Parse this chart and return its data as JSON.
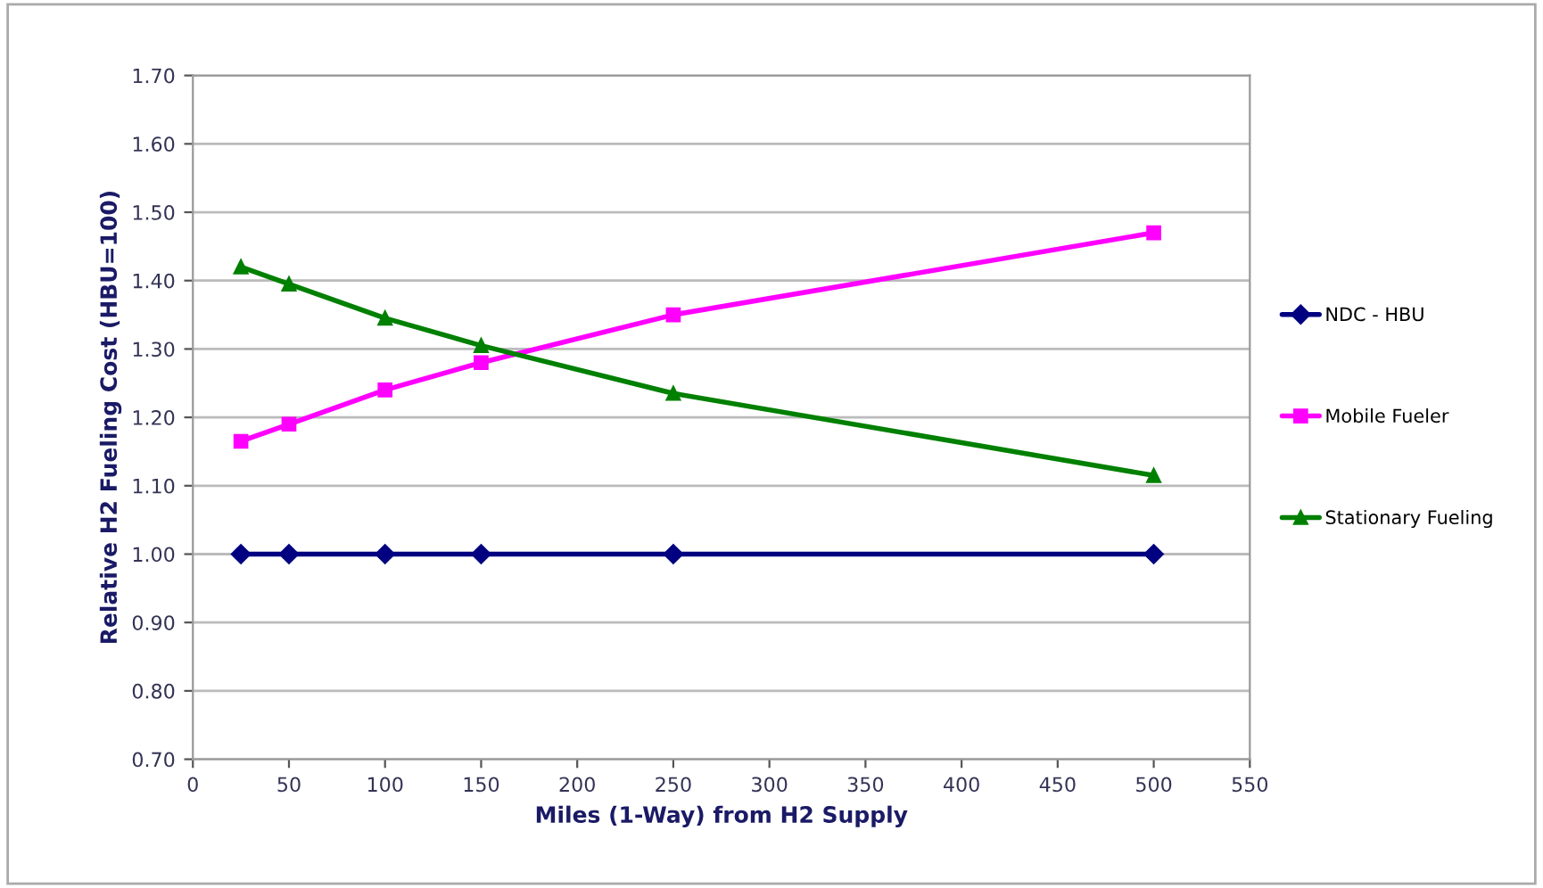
{
  "chart_data": {
    "type": "line",
    "xlabel": "Miles (1-Way) from H2 Supply",
    "ylabel": "Relative H2 Fueling Cost (HBU=100)",
    "x": [
      25,
      50,
      100,
      150,
      250,
      500
    ],
    "series": [
      {
        "name": "NDC - HBU",
        "color": "#000080",
        "marker": "diamond",
        "values": [
          1.0,
          1.0,
          1.0,
          1.0,
          1.0,
          1.0
        ]
      },
      {
        "name": "Mobile Fueler",
        "color": "#ff00ff",
        "marker": "square",
        "values": [
          1.165,
          1.19,
          1.24,
          1.28,
          1.35,
          1.47
        ]
      },
      {
        "name": "Stationary Fueling",
        "color": "#008000",
        "marker": "triangle",
        "values": [
          1.42,
          1.395,
          1.345,
          1.305,
          1.235,
          1.115
        ]
      }
    ],
    "xlim": [
      0,
      550
    ],
    "xticks": [
      0,
      50,
      100,
      150,
      200,
      250,
      300,
      350,
      400,
      450,
      500,
      550
    ],
    "ylim": [
      0.7,
      1.7
    ],
    "yticks": [
      {
        "value": 0.7,
        "label": "0.70"
      },
      {
        "value": 0.8,
        "label": "0.80"
      },
      {
        "value": 0.9,
        "label": "0.90"
      },
      {
        "value": 1.0,
        "label": "1.00"
      },
      {
        "value": 1.1,
        "label": "1.10"
      },
      {
        "value": 1.2,
        "label": "1.20"
      },
      {
        "value": 1.3,
        "label": "1.30"
      },
      {
        "value": 1.4,
        "label": "1.40"
      },
      {
        "value": 1.5,
        "label": "1.50"
      },
      {
        "value": 1.6,
        "label": "1.60"
      },
      {
        "value": 1.7,
        "label": "1.70"
      }
    ],
    "grid": "y",
    "legend": "right",
    "line_style": "solid"
  }
}
